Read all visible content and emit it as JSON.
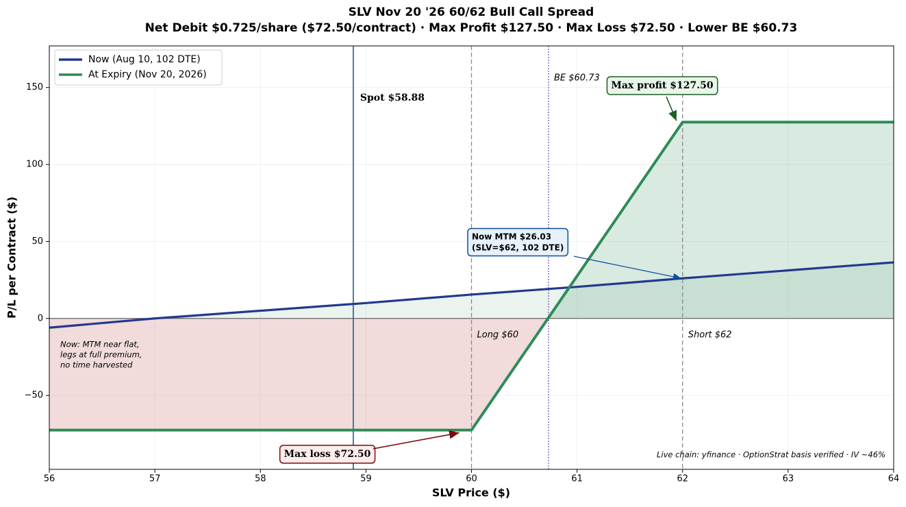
{
  "chart_data": {
    "type": "line",
    "title": "SLV Nov 20 '26 60/62 Bull Call Spread",
    "subtitle": "Net Debit $0.725/share ($72.50/contract) · Max Profit $127.50 · Max Loss $72.50 · Lower BE $60.73",
    "x_label": "SLV Price ($)",
    "y_label": "P/L per Contract ($)",
    "xlim": [
      56,
      64
    ],
    "xticks": [
      56,
      57,
      58,
      59,
      60,
      61,
      62,
      63,
      64
    ],
    "ylim": [
      -98,
      177
    ],
    "yticks": [
      {
        "value": -50,
        "label": "−50"
      },
      0,
      50,
      100,
      150
    ],
    "grid": true,
    "legend": "upper left",
    "series": [
      {
        "name": "Now (Aug 10, 102 DTE)",
        "color": "#22398f",
        "x": [
          56,
          57,
          58,
          59,
          60,
          61,
          62,
          63,
          64
        ],
        "values": [
          -6,
          0,
          5,
          10,
          15.5,
          20.5,
          26.03,
          31.2,
          36.4
        ]
      },
      {
        "name": "At Expiry (Nov 20, 2026)",
        "color": "#2e8b57",
        "x": [
          56,
          60,
          62,
          64
        ],
        "values": [
          -72.5,
          -72.5,
          127.5,
          127.5
        ]
      }
    ],
    "vlines": [
      {
        "value": 58.88,
        "label": "Spot $58.88",
        "color": "#1f5f8b",
        "style": "solid"
      },
      {
        "value": 60,
        "label": "Long $60",
        "color": "#888888",
        "style": "dashed"
      },
      {
        "value": 62,
        "label": "Short $62",
        "color": "#888888",
        "style": "dashed"
      },
      {
        "value": 60.73,
        "label": "BE $60.73",
        "color": "#7b52c4",
        "style": "dotted"
      }
    ],
    "annotations": {
      "max_profit": "Max profit $127.50",
      "max_loss": "Max loss $72.50",
      "mtm": [
        "Now MTM $26.03",
        "(SLV=$62, 102 DTE)"
      ],
      "note": [
        "Now: MTM near flat,",
        "legs at full premium,",
        "no time harvested"
      ],
      "source": "Live chain: yfinance · OptionStrat basis verified · IV ~46%"
    }
  }
}
